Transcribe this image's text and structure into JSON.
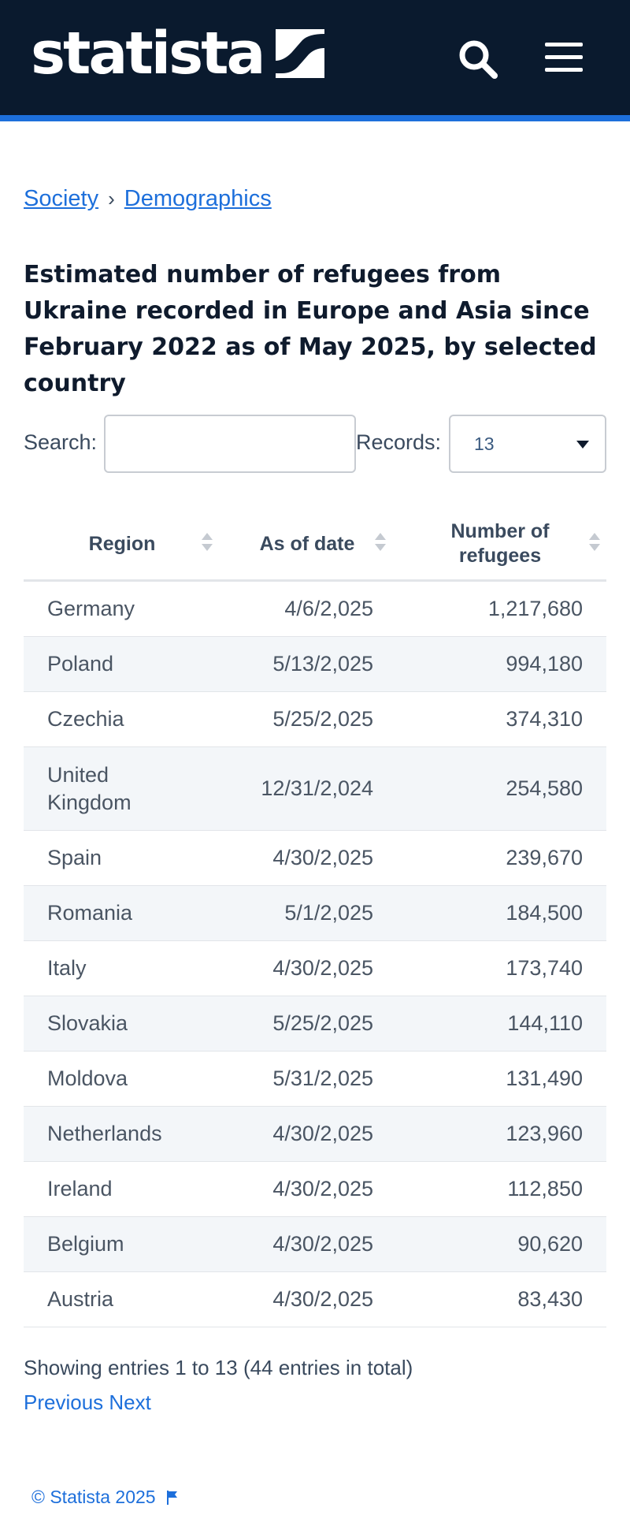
{
  "header": {
    "logo_text": "statista",
    "brand_color": "#0a1a2e",
    "accent_color": "#1d6fdb",
    "icons": [
      "statista-logo-icon",
      "search-icon",
      "hamburger-menu-icon"
    ]
  },
  "breadcrumb": {
    "items": [
      "Society",
      "Demographics"
    ],
    "separator": "›"
  },
  "page": {
    "title": "Estimated number of refugees from Ukraine recorded in Europe and Asia since February 2022 as of May 2025, by selected country"
  },
  "controls": {
    "search_label": "Search:",
    "search_value": "",
    "search_placeholder": "",
    "records_label": "Records:",
    "records_value": "13"
  },
  "table": {
    "columns": [
      "Region",
      "As of date",
      "Number of refugees"
    ],
    "rows": [
      [
        "Germany",
        "4/6/2,025",
        "1,217,680"
      ],
      [
        "Poland",
        "5/13/2,025",
        "994,180"
      ],
      [
        "Czechia",
        "5/25/2,025",
        "374,310"
      ],
      [
        "United Kingdom",
        "12/31/2,024",
        "254,580"
      ],
      [
        "Spain",
        "4/30/2,025",
        "239,670"
      ],
      [
        "Romania",
        "5/1/2,025",
        "184,500"
      ],
      [
        "Italy",
        "4/30/2,025",
        "173,740"
      ],
      [
        "Slovakia",
        "5/25/2,025",
        "144,110"
      ],
      [
        "Moldova",
        "5/31/2,025",
        "131,490"
      ],
      [
        "Netherlands",
        "4/30/2,025",
        "123,960"
      ],
      [
        "Ireland",
        "4/30/2,025",
        "112,850"
      ],
      [
        "Belgium",
        "4/30/2,025",
        "90,620"
      ],
      [
        "Austria",
        "4/30/2,025",
        "83,430"
      ]
    ]
  },
  "pagination": {
    "info": "Showing entries 1 to 13 (44 entries in total)",
    "previous_label": "Previous",
    "next_label": "Next"
  },
  "footer": {
    "copyright": "© Statista 2025"
  }
}
